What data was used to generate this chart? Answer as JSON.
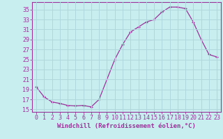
{
  "x": [
    0,
    1,
    2,
    3,
    4,
    5,
    6,
    7,
    8,
    9,
    10,
    11,
    12,
    13,
    14,
    15,
    16,
    17,
    18,
    19,
    20,
    21,
    22,
    23
  ],
  "y": [
    19.5,
    17.5,
    16.5,
    16.2,
    15.8,
    15.7,
    15.8,
    15.5,
    17.0,
    21.0,
    25.0,
    28.0,
    30.5,
    31.5,
    32.5,
    33.0,
    34.5,
    35.5,
    35.5,
    35.2,
    32.5,
    29.0,
    26.0,
    25.5
  ],
  "line_color": "#993399",
  "marker": "+",
  "bg_color": "#c8eef0",
  "grid_color": "#b0d8dc",
  "axis_color": "#993399",
  "xlabel": "Windchill (Refroidissement éolien,°C)",
  "xlim": [
    -0.5,
    23.5
  ],
  "ylim": [
    14.5,
    36.5
  ],
  "yticks": [
    15,
    17,
    19,
    21,
    23,
    25,
    27,
    29,
    31,
    33,
    35
  ],
  "xticks": [
    0,
    1,
    2,
    3,
    4,
    5,
    6,
    7,
    8,
    9,
    10,
    11,
    12,
    13,
    14,
    15,
    16,
    17,
    18,
    19,
    20,
    21,
    22,
    23
  ],
  "label_fontsize": 6.5,
  "tick_fontsize": 6.0
}
